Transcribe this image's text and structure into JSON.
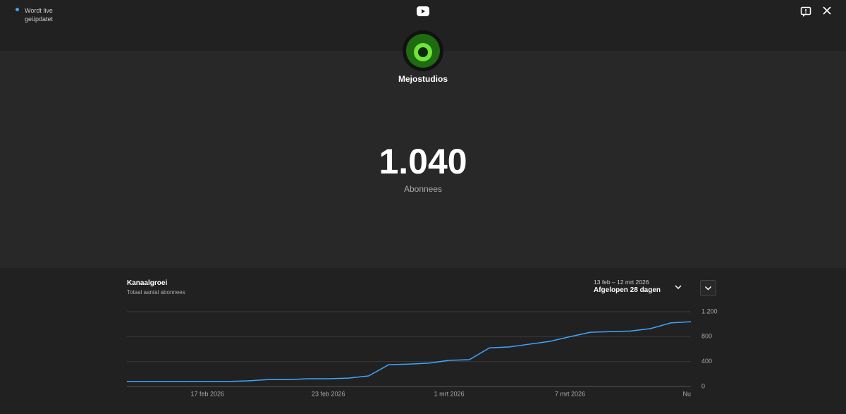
{
  "header": {
    "status_line1": "Wordt live",
    "status_line2": "geüpdatet",
    "channel_name": "Mejostudios",
    "subscriber_count": "1.040",
    "subscriber_label": "Abonnees"
  },
  "chart_data": {
    "type": "line",
    "title": "Kanaalgroei",
    "subtitle": "Totaal aantal abonnees",
    "date_range": "13 feb – 12 mrt 2026",
    "period": "Afgelopen 28 dagen",
    "categories": [
      null,
      null,
      null,
      null,
      "17 feb 2026",
      null,
      null,
      null,
      null,
      null,
      "23 feb 2026",
      null,
      null,
      null,
      null,
      null,
      "1 mrt 2026",
      null,
      null,
      null,
      null,
      null,
      "7 mrt 2026",
      null,
      null,
      null,
      null,
      null,
      "Nu"
    ],
    "series": [
      {
        "name": "Totaal aantal abonnees",
        "color": "#3ea6ff",
        "values": [
          80,
          80,
          80,
          80,
          80,
          80,
          90,
          110,
          110,
          125,
          125,
          135,
          170,
          350,
          360,
          375,
          420,
          430,
          620,
          635,
          680,
          725,
          800,
          870,
          880,
          890,
          930,
          1020,
          1040
        ]
      }
    ],
    "ylim": [
      0,
      1200
    ],
    "yticks": [
      0,
      400,
      800,
      {
        "value": 1200,
        "label": "1.200"
      }
    ],
    "grid": true
  }
}
